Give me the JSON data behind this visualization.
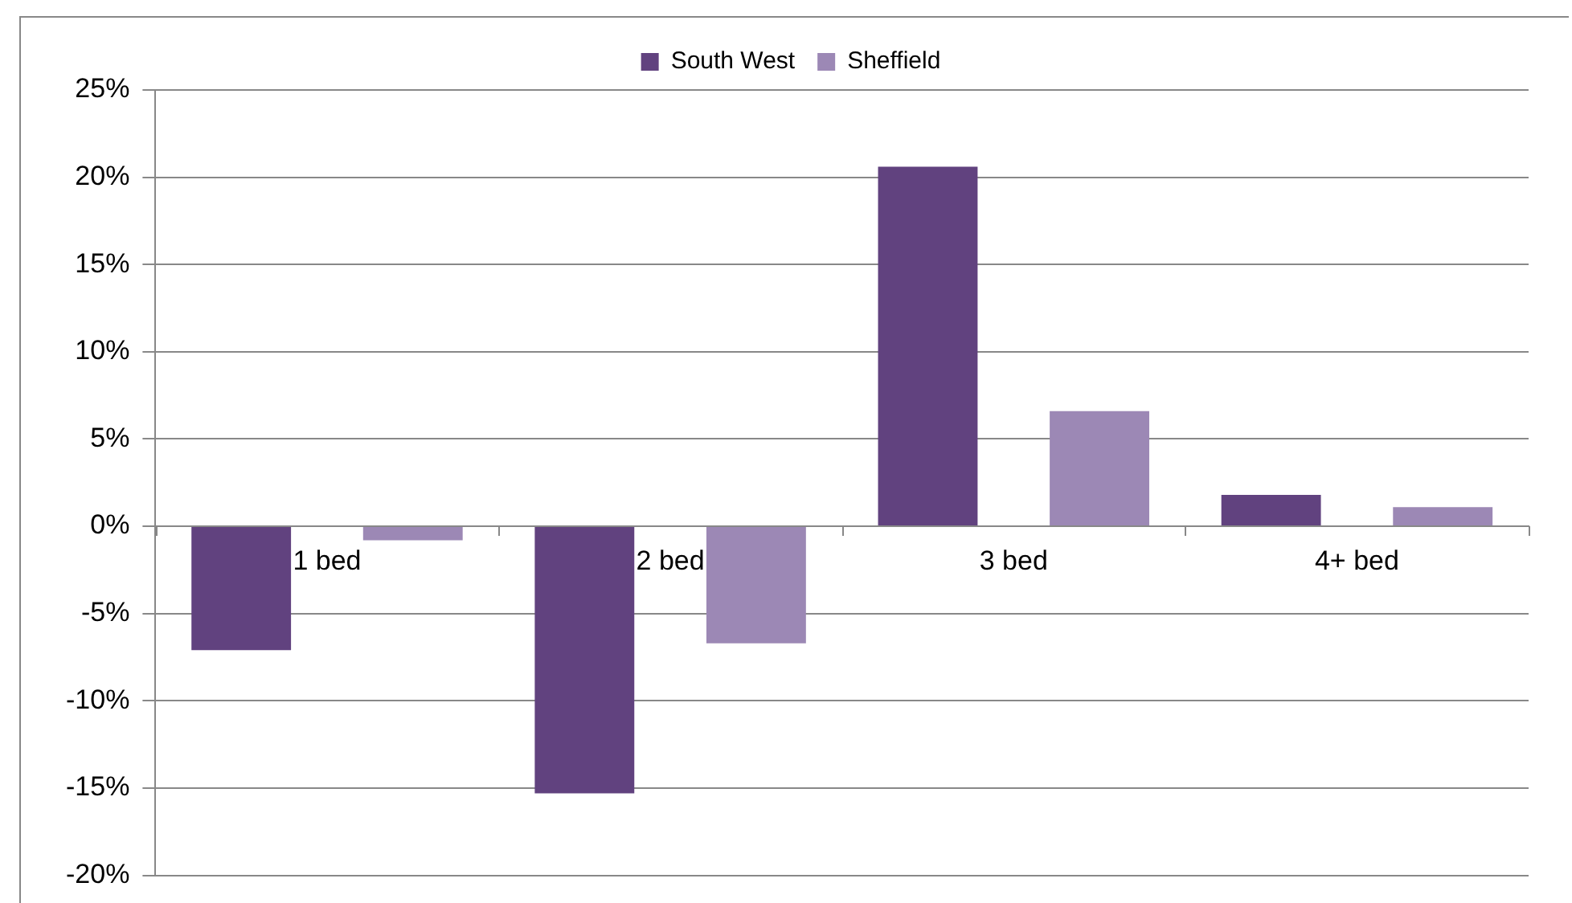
{
  "chart_data": {
    "type": "bar",
    "categories": [
      "1 bed",
      "2 bed",
      "3 bed",
      "4+ bed"
    ],
    "series": [
      {
        "name": "South West",
        "color": "#61427f",
        "values": [
          -7.1,
          -15.3,
          20.6,
          1.8
        ]
      },
      {
        "name": "Sheffield",
        "color": "#9c88b5",
        "values": [
          -0.8,
          -6.7,
          6.6,
          1.1
        ]
      }
    ],
    "ylim": [
      -20,
      25
    ],
    "yticks": [
      {
        "value": -20,
        "label": "-20%"
      },
      {
        "value": -15,
        "label": "-15%"
      },
      {
        "value": -10,
        "label": "-10%"
      },
      {
        "value": -5,
        "label": "-5%"
      },
      {
        "value": 0,
        "label": "0%"
      },
      {
        "value": 5,
        "label": "5%"
      },
      {
        "value": 10,
        "label": "10%"
      },
      {
        "value": 15,
        "label": "15%"
      },
      {
        "value": 20,
        "label": "20%"
      },
      {
        "value": 25,
        "label": "25%"
      }
    ],
    "grid": "y",
    "legend": "top"
  }
}
